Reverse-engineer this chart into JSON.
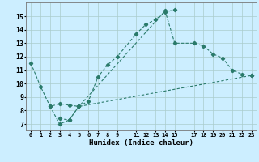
{
  "title": "",
  "xlabel": "Humidex (Indice chaleur)",
  "bg_color": "#cceeff",
  "grid_color": "#aacccc",
  "line_color": "#2a7a6a",
  "xlim": [
    -0.5,
    23.5
  ],
  "ylim": [
    6.5,
    16.0
  ],
  "xticks": [
    0,
    1,
    2,
    3,
    4,
    5,
    6,
    7,
    8,
    9,
    11,
    12,
    13,
    14,
    15,
    17,
    18,
    19,
    20,
    21,
    22,
    23
  ],
  "yticks": [
    7,
    8,
    9,
    10,
    11,
    12,
    13,
    14,
    15
  ],
  "c1x": [
    0,
    1,
    2,
    3,
    4,
    5,
    6,
    7,
    8,
    9,
    11,
    12,
    13,
    14,
    15
  ],
  "c1y": [
    11.5,
    9.8,
    8.3,
    8.5,
    8.4,
    8.3,
    8.7,
    10.5,
    11.4,
    12.0,
    13.7,
    14.4,
    14.75,
    15.3,
    15.5
  ],
  "c2x": [
    2,
    3,
    4,
    5,
    14,
    15,
    17,
    18,
    19,
    20,
    21,
    22,
    23
  ],
  "c2y": [
    8.3,
    7.0,
    7.3,
    8.3,
    15.4,
    13.0,
    13.0,
    12.8,
    12.2,
    11.9,
    11.0,
    10.7,
    10.6
  ],
  "c3x": [
    3,
    4,
    5,
    23
  ],
  "c3y": [
    7.4,
    7.3,
    8.3,
    10.6
  ]
}
